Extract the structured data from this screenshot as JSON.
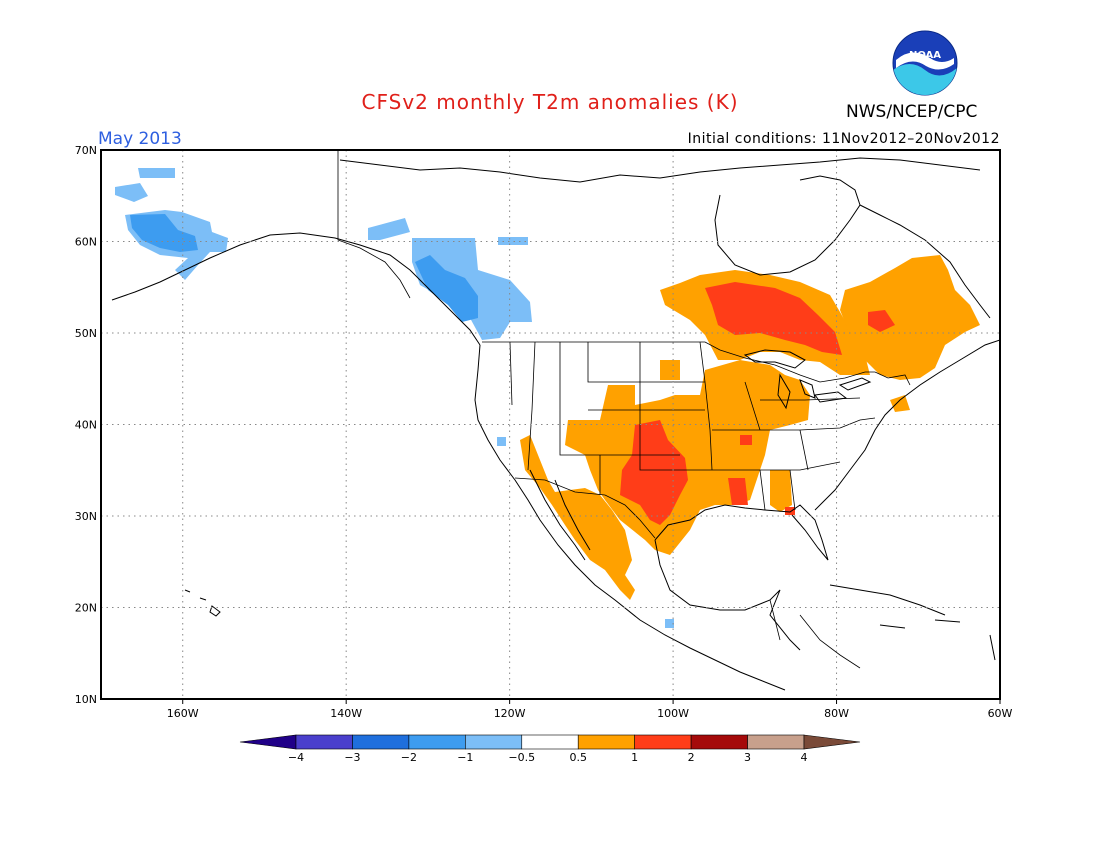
{
  "title": "CFSv2 monthly T2m anomalies (K)",
  "agency": "NWS/NCEP/CPC",
  "logo_text": "NOAA",
  "target_month": "May 2013",
  "initial_conditions": "Initial conditions: 11Nov2012–20Nov2012",
  "colors": {
    "title": "#e0201a",
    "month": "#2e5fe0",
    "ocean": "#ffffff",
    "grid": "#888888"
  },
  "map": {
    "lon_range": [
      -170,
      -60
    ],
    "lat_range": [
      10,
      70
    ],
    "lat_ticks": [
      "10N",
      "20N",
      "30N",
      "40N",
      "50N",
      "60N",
      "70N"
    ],
    "lon_ticks": [
      "160W",
      "140W",
      "120W",
      "100W",
      "80W",
      "60W"
    ]
  },
  "legend": {
    "labels": [
      "−4",
      "−3",
      "−2",
      "−1",
      "−0.5",
      "0.5",
      "1",
      "2",
      "3",
      "4"
    ],
    "colors": [
      "#200088",
      "#4a3fcc",
      "#1f6fdd",
      "#3d9cf0",
      "#7cbef7",
      "#ffffff",
      "#ffa100",
      "#ff3d18",
      "#a50a0a",
      "#c8a08c",
      "#7a4a38"
    ]
  },
  "anomaly_regions": [
    {
      "name": "Alaska west cool",
      "level": "-1",
      "color": "#7cbef7"
    },
    {
      "name": "Alaska southwest cool core",
      "level": "-2",
      "color": "#3d9cf0"
    },
    {
      "name": "British Columbia cool",
      "level": "-1",
      "color": "#7cbef7"
    },
    {
      "name": "British Columbia cool core",
      "level": "-2",
      "color": "#3d9cf0"
    },
    {
      "name": "Southern Plains warm",
      "level": "0.5",
      "color": "#ffa100"
    },
    {
      "name": "Texas warm core",
      "level": "1",
      "color": "#ff3d18"
    },
    {
      "name": "Ontario warm",
      "level": "0.5",
      "color": "#ffa100"
    },
    {
      "name": "Ontario warm core",
      "level": "1",
      "color": "#ff3d18"
    },
    {
      "name": "Quebec warm",
      "level": "0.5",
      "color": "#ffa100"
    }
  ]
}
